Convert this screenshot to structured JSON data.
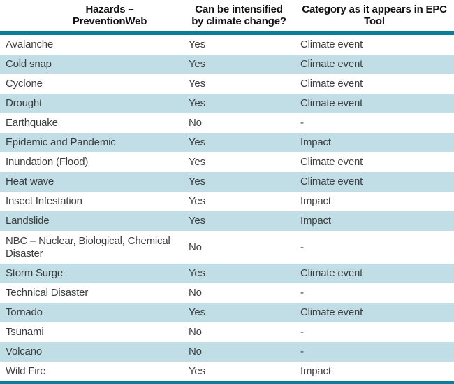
{
  "table": {
    "accent_color": "#0c7d99",
    "alt_row_color": "#c1dde5",
    "columns": [
      {
        "line1": "Hazards –",
        "line2": "PreventionWeb"
      },
      {
        "line1": "Can be intensified",
        "line2": "by climate change?"
      },
      {
        "line1": "Category as it appears in EPC",
        "line2": "Tool"
      }
    ],
    "rows": [
      {
        "hazard": "Avalanche",
        "intensified": "Yes",
        "category": "Climate event"
      },
      {
        "hazard": "Cold snap",
        "intensified": "Yes",
        "category": "Climate event"
      },
      {
        "hazard": "Cyclone",
        "intensified": "Yes",
        "category": "Climate event"
      },
      {
        "hazard": "Drought",
        "intensified": "Yes",
        "category": "Climate event"
      },
      {
        "hazard": "Earthquake",
        "intensified": "No",
        "category": "-"
      },
      {
        "hazard": "Epidemic and Pandemic",
        "intensified": "Yes",
        "category": "Impact"
      },
      {
        "hazard": "Inundation (Flood)",
        "intensified": "Yes",
        "category": "Climate event"
      },
      {
        "hazard": "Heat wave",
        "intensified": "Yes",
        "category": "Climate event"
      },
      {
        "hazard": "Insect Infestation",
        "intensified": "Yes",
        "category": "Impact"
      },
      {
        "hazard": "Landslide",
        "intensified": "Yes",
        "category": "Impact"
      },
      {
        "hazard": "NBC – Nuclear, Biological, Chemical Disaster",
        "intensified": "No",
        "category": "-",
        "tall": true
      },
      {
        "hazard": "Storm Surge",
        "intensified": "Yes",
        "category": "Climate event"
      },
      {
        "hazard": "Technical Disaster",
        "intensified": "No",
        "category": "-"
      },
      {
        "hazard": "Tornado",
        "intensified": "Yes",
        "category": "Climate event"
      },
      {
        "hazard": "Tsunami",
        "intensified": "No",
        "category": "-"
      },
      {
        "hazard": "Volcano",
        "intensified": "No",
        "category": "-"
      },
      {
        "hazard": "Wild Fire",
        "intensified": "Yes",
        "category": "Impact"
      }
    ]
  }
}
